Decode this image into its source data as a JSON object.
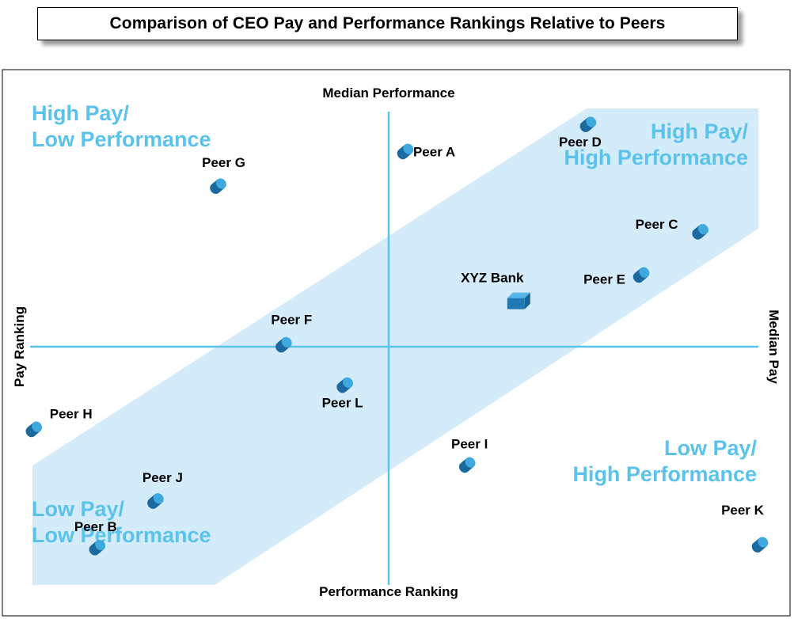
{
  "title": "Comparison of CEO Pay and Performance Rankings Relative to Peers",
  "chart_data": {
    "type": "scatter",
    "title": "Comparison of CEO Pay and Performance Rankings Relative to Peers",
    "xlabel": "Performance Ranking",
    "ylabel": "Pay Ranking",
    "x_axis_top_label": "Median Performance",
    "y_axis_right_label": "Median Pay",
    "x_range": [
      0,
      100
    ],
    "y_range": [
      0,
      100
    ],
    "median_x": 50,
    "median_y": 50,
    "quadrants": [
      {
        "name": "high-pay-low-performance",
        "lines": [
          "High Pay/",
          "Low Performance"
        ]
      },
      {
        "name": "high-pay-high-performance",
        "lines": [
          "High Pay/",
          "High Performance"
        ]
      },
      {
        "name": "low-pay-high-performance",
        "lines": [
          "Low Pay/",
          "High Performance"
        ]
      },
      {
        "name": "low-pay-low-performance",
        "lines": [
          "Low Pay/",
          "Low Performance"
        ]
      }
    ],
    "alignment_band": {
      "description": "shaded band where pay is aligned with performance",
      "color": "#d4ecf9"
    },
    "points": [
      {
        "label": "Peer A",
        "x": 51.3,
        "y": 91.1,
        "marker": "cylinder"
      },
      {
        "label": "Peer B",
        "x": 9.0,
        "y": 7.7,
        "marker": "cylinder"
      },
      {
        "label": "Peer C",
        "x": 91.8,
        "y": 74.2,
        "marker": "cylinder"
      },
      {
        "label": "Peer D",
        "x": 76.4,
        "y": 96.8,
        "marker": "cylinder"
      },
      {
        "label": "Peer E",
        "x": 83.7,
        "y": 65.1,
        "marker": "cylinder"
      },
      {
        "label": "Peer F",
        "x": 34.6,
        "y": 50.4,
        "marker": "cylinder"
      },
      {
        "label": "Peer G",
        "x": 25.6,
        "y": 83.8,
        "marker": "cylinder"
      },
      {
        "label": "Peer H",
        "x": 0.3,
        "y": 32.6,
        "marker": "cylinder"
      },
      {
        "label": "Peer I",
        "x": 59.8,
        "y": 25.1,
        "marker": "cylinder"
      },
      {
        "label": "Peer J",
        "x": 17.0,
        "y": 17.5,
        "marker": "cylinder"
      },
      {
        "label": "Peer K",
        "x": 100.0,
        "y": 8.3,
        "marker": "cylinder"
      },
      {
        "label": "Peer L",
        "x": 43.0,
        "y": 41.9,
        "marker": "cylinder"
      },
      {
        "label": "XYZ Bank",
        "x": 66.5,
        "y": 59.4,
        "marker": "cube"
      }
    ]
  },
  "colors": {
    "axis": "#5bc2ec",
    "band": "#d4ecf9",
    "quadrant_text": "#5bc2ec",
    "marker_dark": "#1a6aa0",
    "marker_light": "#3fa8de",
    "cube_front": "#1f79b4",
    "cube_top": "#56b6e8",
    "cube_side": "#15649a"
  }
}
